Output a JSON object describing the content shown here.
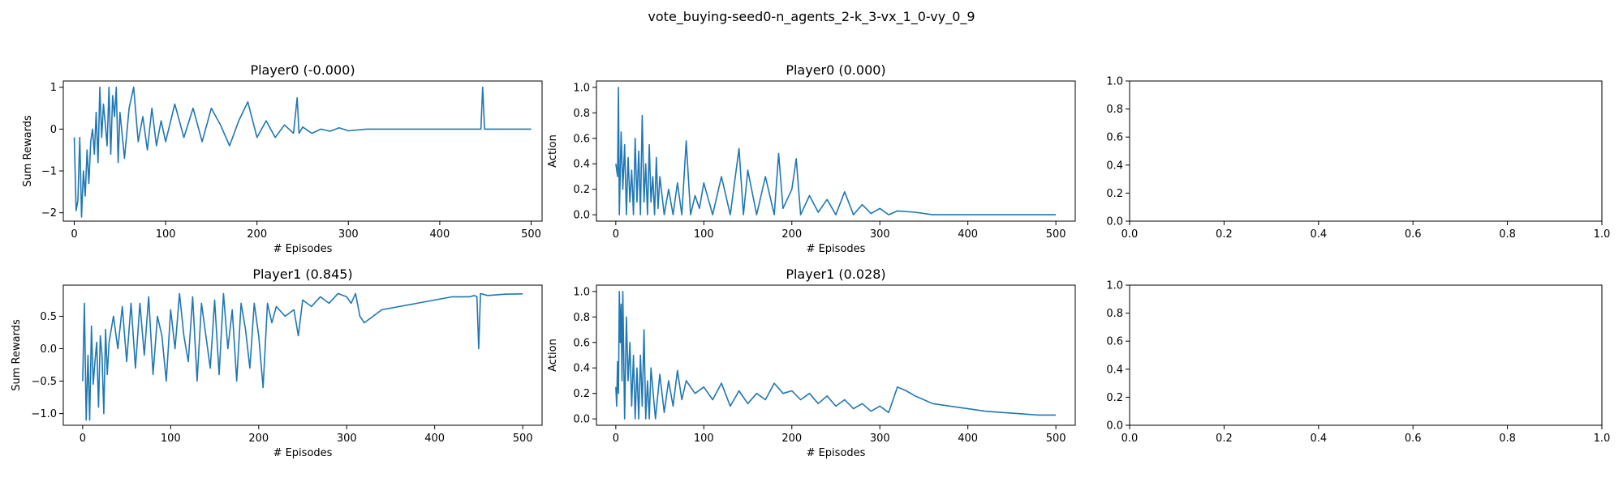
{
  "figure": {
    "suptitle": "vote_buying-seed0-n_agents_2-k_3-vx_1_0-vy_0_9"
  },
  "colors": {
    "line": "#1f77b4",
    "axis": "#000000"
  },
  "chart_data": [
    {
      "type": "line",
      "title": "Player0 (-0.000)",
      "xlabel": "# Episodes",
      "ylabel": "Sum Rewards",
      "xlim": [
        -12,
        512
      ],
      "ylim": [
        -2.2,
        1.15
      ],
      "xticks": [
        0,
        100,
        200,
        300,
        400,
        500
      ],
      "yticks": [
        -2,
        -1,
        0,
        1
      ],
      "series": [
        {
          "name": "Player0 reward",
          "x": [
            0,
            2,
            4,
            6,
            8,
            10,
            12,
            14,
            16,
            18,
            20,
            22,
            24,
            26,
            28,
            30,
            32,
            34,
            36,
            38,
            40,
            42,
            44,
            46,
            48,
            50,
            55,
            60,
            65,
            70,
            75,
            80,
            85,
            90,
            95,
            100,
            110,
            120,
            130,
            140,
            150,
            160,
            170,
            180,
            190,
            200,
            210,
            220,
            230,
            240,
            244,
            246,
            250,
            260,
            270,
            280,
            290,
            300,
            320,
            340,
            360,
            380,
            400,
            420,
            440,
            445,
            447,
            449,
            452,
            460,
            480,
            500
          ],
          "y": [
            -0.2,
            -1.95,
            -1.7,
            -0.2,
            -2.1,
            -1.0,
            -1.6,
            -0.5,
            -1.3,
            -0.3,
            0.0,
            -0.6,
            0.4,
            -0.8,
            1.0,
            -0.2,
            0.6,
            0.1,
            -0.4,
            1.0,
            -0.6,
            0.8,
            0.3,
            1.0,
            -0.8,
            0.4,
            -0.7,
            0.5,
            1.0,
            -0.3,
            0.3,
            -0.5,
            0.5,
            -0.4,
            0.2,
            -0.3,
            0.6,
            -0.2,
            0.5,
            -0.3,
            0.5,
            0.1,
            -0.4,
            0.2,
            0.65,
            -0.2,
            0.2,
            -0.2,
            0.1,
            -0.1,
            0.75,
            -0.1,
            0.05,
            -0.1,
            0.0,
            -0.05,
            0.03,
            -0.04,
            0.0,
            0.0,
            0.0,
            0.0,
            0.0,
            0.0,
            0.0,
            0.0,
            1.0,
            0.0,
            0.0,
            0.0,
            0.0,
            0.0
          ]
        }
      ]
    },
    {
      "type": "line",
      "title": "Player0 (0.000)",
      "xlabel": "# Episodes",
      "ylabel": "Action",
      "xlim": [
        -22,
        522
      ],
      "ylim": [
        -0.05,
        1.05
      ],
      "xticks": [
        0,
        100,
        200,
        300,
        400,
        500
      ],
      "yticks": [
        0.0,
        0.2,
        0.4,
        0.6,
        0.8,
        1.0
      ],
      "series": [
        {
          "name": "Player0 action",
          "x": [
            0,
            2,
            3,
            4,
            6,
            8,
            10,
            12,
            14,
            16,
            18,
            20,
            22,
            24,
            26,
            28,
            30,
            32,
            34,
            36,
            38,
            40,
            42,
            44,
            46,
            48,
            50,
            55,
            60,
            65,
            70,
            75,
            80,
            85,
            90,
            95,
            100,
            110,
            120,
            130,
            140,
            145,
            150,
            160,
            170,
            180,
            185,
            190,
            200,
            205,
            210,
            220,
            230,
            240,
            250,
            260,
            270,
            280,
            290,
            300,
            310,
            320,
            340,
            360,
            400,
            450,
            500
          ],
          "y": [
            0.4,
            0.3,
            1.0,
            0.0,
            0.65,
            0.2,
            0.55,
            0.0,
            0.45,
            0.1,
            0.35,
            0.0,
            0.6,
            0.1,
            0.5,
            0.0,
            0.78,
            0.1,
            0.4,
            0.0,
            0.55,
            0.1,
            0.3,
            0.0,
            0.45,
            0.05,
            0.3,
            0.0,
            0.2,
            0.0,
            0.25,
            0.0,
            0.58,
            0.0,
            0.15,
            0.05,
            0.25,
            0.0,
            0.3,
            0.0,
            0.52,
            0.0,
            0.35,
            0.0,
            0.3,
            0.0,
            0.48,
            0.05,
            0.2,
            0.44,
            0.0,
            0.15,
            0.02,
            0.12,
            0.0,
            0.18,
            0.0,
            0.08,
            0.01,
            0.05,
            0.0,
            0.03,
            0.02,
            0.0,
            0.0,
            0.0,
            0.0
          ]
        }
      ]
    },
    {
      "type": "line",
      "title": "",
      "xlabel": "",
      "ylabel": "",
      "xlim": [
        0,
        1
      ],
      "ylim": [
        0,
        1
      ],
      "xticks": [
        0.0,
        0.2,
        0.4,
        0.6,
        0.8,
        1.0
      ],
      "yticks": [
        0.0,
        0.2,
        0.4,
        0.6,
        0.8,
        1.0
      ],
      "series": []
    },
    {
      "type": "line",
      "title": "Player1 (0.845)",
      "xlabel": "# Episodes",
      "ylabel": "Sum Rewards",
      "xlim": [
        -22,
        522
      ],
      "ylim": [
        -1.18,
        0.98
      ],
      "xticks": [
        0,
        100,
        200,
        300,
        400,
        500
      ],
      "yticks": [
        -1.0,
        -0.5,
        0.0,
        0.5
      ],
      "series": [
        {
          "name": "Player1 reward",
          "x": [
            0,
            2,
            4,
            6,
            8,
            10,
            12,
            14,
            16,
            18,
            20,
            22,
            24,
            26,
            28,
            30,
            35,
            40,
            45,
            50,
            55,
            60,
            65,
            70,
            75,
            80,
            85,
            90,
            95,
            100,
            105,
            110,
            115,
            120,
            125,
            130,
            135,
            140,
            145,
            150,
            155,
            160,
            165,
            170,
            175,
            180,
            185,
            190,
            195,
            200,
            205,
            210,
            215,
            220,
            230,
            240,
            245,
            250,
            260,
            270,
            280,
            290,
            300,
            305,
            310,
            315,
            320,
            330,
            340,
            360,
            380,
            400,
            420,
            440,
            445,
            448,
            450,
            452,
            460,
            480,
            500
          ],
          "y": [
            -0.5,
            0.7,
            -1.1,
            -0.1,
            -1.1,
            0.35,
            -0.55,
            -0.2,
            0.1,
            -0.9,
            0.2,
            -0.1,
            -1.0,
            0.3,
            -0.4,
            0.1,
            0.5,
            0.0,
            0.65,
            -0.2,
            0.7,
            -0.3,
            0.7,
            -0.1,
            0.8,
            -0.4,
            0.5,
            0.2,
            -0.5,
            0.6,
            0.0,
            0.85,
            0.2,
            -0.2,
            0.8,
            -0.5,
            0.7,
            0.2,
            -0.3,
            0.75,
            -0.4,
            0.85,
            0.0,
            0.6,
            -0.5,
            0.7,
            0.3,
            -0.3,
            0.7,
            0.2,
            -0.6,
            0.7,
            0.4,
            0.65,
            0.5,
            0.6,
            0.2,
            0.75,
            0.65,
            0.8,
            0.7,
            0.85,
            0.8,
            0.7,
            0.85,
            0.5,
            0.4,
            0.5,
            0.6,
            0.65,
            0.7,
            0.75,
            0.8,
            0.8,
            0.82,
            0.8,
            0.0,
            0.85,
            0.82,
            0.84,
            0.845
          ]
        }
      ]
    },
    {
      "type": "line",
      "title": "Player1 (0.028)",
      "xlabel": "# Episodes",
      "ylabel": "Action",
      "xlim": [
        -22,
        522
      ],
      "ylim": [
        -0.05,
        1.05
      ],
      "xticks": [
        0,
        100,
        200,
        300,
        400,
        500
      ],
      "yticks": [
        0.0,
        0.2,
        0.4,
        0.6,
        0.8,
        1.0
      ],
      "series": [
        {
          "name": "Player1 action",
          "x": [
            0,
            1,
            2,
            3,
            4,
            5,
            6,
            7,
            8,
            9,
            10,
            12,
            14,
            16,
            18,
            20,
            22,
            24,
            26,
            28,
            30,
            32,
            34,
            36,
            38,
            40,
            45,
            50,
            55,
            60,
            65,
            70,
            75,
            80,
            90,
            100,
            110,
            120,
            130,
            140,
            150,
            160,
            170,
            180,
            190,
            200,
            210,
            220,
            230,
            240,
            250,
            260,
            270,
            280,
            290,
            300,
            310,
            315,
            320,
            330,
            340,
            350,
            360,
            380,
            400,
            420,
            440,
            460,
            480,
            500
          ],
          "y": [
            0.25,
            0.1,
            0.45,
            0.2,
            1.0,
            0.6,
            0.9,
            0.3,
            1.0,
            0.5,
            0.0,
            0.8,
            0.3,
            0.6,
            0.1,
            0.5,
            0.0,
            0.4,
            0.0,
            0.5,
            0.1,
            0.7,
            0.0,
            0.3,
            0.0,
            0.4,
            0.0,
            0.35,
            0.05,
            0.3,
            0.1,
            0.38,
            0.15,
            0.3,
            0.2,
            0.25,
            0.15,
            0.28,
            0.1,
            0.22,
            0.12,
            0.2,
            0.15,
            0.28,
            0.2,
            0.22,
            0.15,
            0.2,
            0.12,
            0.18,
            0.1,
            0.15,
            0.08,
            0.12,
            0.06,
            0.1,
            0.05,
            0.15,
            0.25,
            0.22,
            0.18,
            0.15,
            0.12,
            0.1,
            0.08,
            0.06,
            0.05,
            0.04,
            0.03,
            0.03
          ]
        }
      ]
    },
    {
      "type": "line",
      "title": "",
      "xlabel": "",
      "ylabel": "",
      "xlim": [
        0,
        1
      ],
      "ylim": [
        0,
        1
      ],
      "xticks": [
        0.0,
        0.2,
        0.4,
        0.6,
        0.8,
        1.0
      ],
      "yticks": [
        0.0,
        0.2,
        0.4,
        0.6,
        0.8,
        1.0
      ],
      "series": []
    }
  ]
}
